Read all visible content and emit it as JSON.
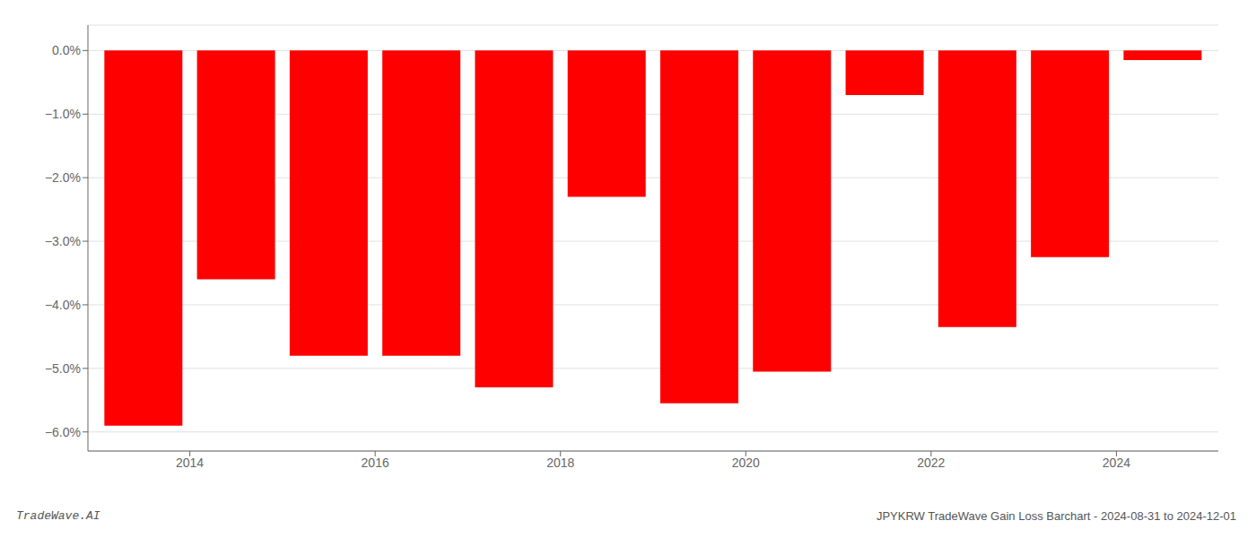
{
  "chart_data": {
    "type": "bar",
    "x": [
      2013,
      2014,
      2015,
      2016,
      2017,
      2018,
      2019,
      2020,
      2021,
      2022,
      2023,
      2024
    ],
    "values": [
      -5.9,
      -3.6,
      -4.8,
      -4.8,
      -5.3,
      -2.3,
      -5.55,
      -5.05,
      -0.7,
      -4.35,
      -3.25,
      -0.15
    ],
    "color": "#ff0000",
    "xlim": [
      2012.4,
      2024.6
    ],
    "xticks": [
      {
        "value": 2013.5,
        "label": "2014"
      },
      {
        "value": 2015.5,
        "label": "2016"
      },
      {
        "value": 2017.5,
        "label": "2018"
      },
      {
        "value": 2019.5,
        "label": "2020"
      },
      {
        "value": 2021.5,
        "label": "2022"
      },
      {
        "value": 2023.5,
        "label": "2024"
      }
    ],
    "ylim": [
      -6.3,
      0.4
    ],
    "yticks": [
      {
        "value": 0.0,
        "label": "0.0%"
      },
      {
        "value": -1.0,
        "label": "−1.0%"
      },
      {
        "value": -2.0,
        "label": "−2.0%"
      },
      {
        "value": -3.0,
        "label": "−3.0%"
      },
      {
        "value": -4.0,
        "label": "−4.0%"
      },
      {
        "value": -5.0,
        "label": "−5.0%"
      },
      {
        "value": -6.0,
        "label": "−6.0%"
      }
    ],
    "grid": true,
    "annotations": [
      "TradeWave.AI",
      "JPYKRW TradeWave Gain Loss Barchart - 2024-08-31 to 2024-12-01"
    ]
  }
}
